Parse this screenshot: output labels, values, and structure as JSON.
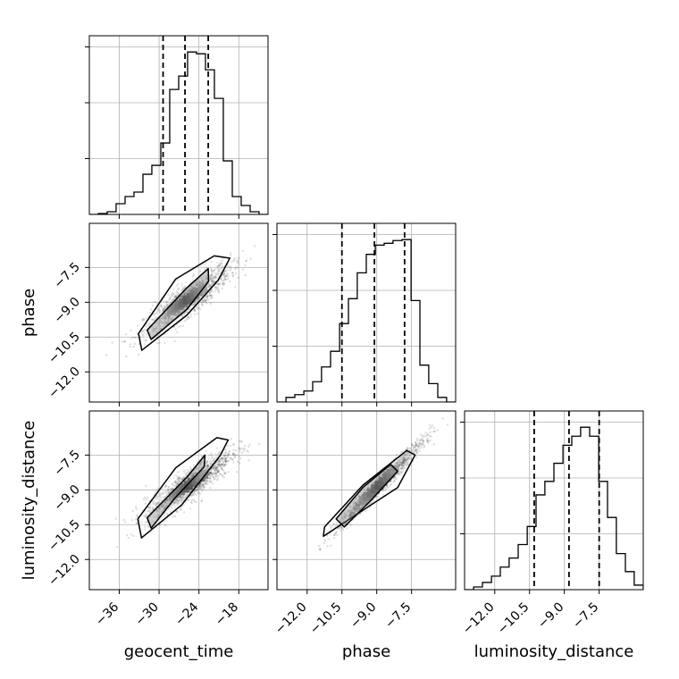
{
  "chart_data": {
    "type": "corner",
    "parameters": [
      "geocent_time",
      "phase",
      "luminosity_distance"
    ],
    "axis_labels": {
      "x": [
        "geocent_time",
        "phase",
        "luminosity_distance"
      ],
      "y": [
        "phase",
        "luminosity_distance"
      ]
    },
    "ranges": {
      "geocent_time": [
        -40.5,
        -13.6
      ],
      "phase": [
        -13.3,
        -5.6
      ],
      "luminosity_distance": [
        -13.3,
        -5.6
      ]
    },
    "ticks": {
      "geocent_time": [
        -36,
        -30,
        -24,
        -18
      ],
      "phase": [
        -12.0,
        -10.5,
        -9.0,
        -7.5
      ],
      "luminosity_distance": [
        -12.0,
        -10.5,
        -9.0,
        -7.5
      ]
    },
    "tick_labels": {
      "geocent_time": [
        "−36",
        "−30",
        "−24",
        "−18"
      ],
      "phase": [
        "−12.0",
        "−10.5",
        "−9.0",
        "−7.5"
      ],
      "luminosity_distance": [
        "−12.0",
        "−10.5",
        "−9.0",
        "−7.5"
      ]
    },
    "quantiles": {
      "geocent_time": [
        -29.4,
        -26.1,
        -22.6
      ],
      "phase": [
        -10.5,
        -9.1,
        -7.8
      ],
      "luminosity_distance": [
        -10.3,
        -8.8,
        -7.5
      ]
    },
    "histograms": {
      "geocent_time": {
        "edges": [
          -40.5,
          -39.16,
          -37.81,
          -36.47,
          -35.12,
          -33.78,
          -32.43,
          -31.09,
          -29.74,
          -28.4,
          -27.05,
          -25.71,
          -24.36,
          -23.02,
          -21.67,
          -20.33,
          -18.98,
          -17.64,
          -16.29,
          -14.95,
          -13.6
        ],
        "values": [
          0,
          1,
          3,
          12,
          20,
          25,
          45,
          55,
          80,
          140,
          155,
          182,
          180,
          162,
          130,
          60,
          20,
          10,
          3,
          0
        ]
      },
      "phase": {
        "edges": [
          -13.3,
          -12.91,
          -12.53,
          -12.14,
          -11.76,
          -11.38,
          -10.99,
          -10.6,
          -10.22,
          -9.84,
          -9.45,
          -9.06,
          -8.68,
          -8.3,
          -7.91,
          -7.52,
          -7.14,
          -6.76,
          -6.37,
          -5.99,
          -5.6
        ],
        "values": [
          0,
          5,
          8,
          12,
          22,
          38,
          55,
          85,
          112,
          140,
          160,
          170,
          172,
          175,
          176,
          110,
          40,
          20,
          5,
          0
        ]
      },
      "luminosity_distance": {
        "edges": [
          -13.3,
          -12.91,
          -12.53,
          -12.14,
          -11.76,
          -11.38,
          -10.99,
          -10.6,
          -10.22,
          -9.84,
          -9.45,
          -9.06,
          -8.68,
          -8.3,
          -7.91,
          -7.52,
          -7.14,
          -6.76,
          -6.37,
          -5.99,
          -5.6
        ],
        "values": [
          0,
          3,
          8,
          15,
          25,
          35,
          50,
          70,
          105,
          120,
          140,
          160,
          170,
          180,
          170,
          120,
          80,
          40,
          20,
          5
        ]
      }
    },
    "pairs": [
      {
        "x": "geocent_time",
        "y": "phase",
        "center": [
          -25.8,
          -8.9
        ],
        "slope": 0.2,
        "scatter": 0.35,
        "contours": [
          [
            [
              -32.6,
              -11.07
            ],
            [
              -25.8,
              -9.55
            ],
            [
              -21.1,
              -8.05
            ],
            [
              -19.35,
              -7.1
            ],
            [
              -21.7,
              -7.0
            ],
            [
              -27.5,
              -8.0
            ],
            [
              -33.1,
              -10.35
            ]
          ],
          [
            [
              -31.2,
              -10.6
            ],
            [
              -25.8,
              -9.3
            ],
            [
              -22.55,
              -8.1
            ],
            [
              -22.6,
              -7.55
            ],
            [
              -25.9,
              -8.4
            ],
            [
              -31.8,
              -10.2
            ]
          ]
        ]
      },
      {
        "x": "geocent_time",
        "y": "luminosity_distance",
        "center": [
          -25.6,
          -8.8
        ],
        "slope": 0.2,
        "scatter": 0.35,
        "contours": [
          [
            [
              -32.65,
              -11.07
            ],
            [
              -26.6,
              -9.65
            ],
            [
              -20.8,
              -7.52
            ],
            [
              -19.6,
              -6.85
            ],
            [
              -21.3,
              -6.75
            ],
            [
              -27.5,
              -8.05
            ],
            [
              -33.2,
              -10.25
            ]
          ],
          [
            [
              -31.2,
              -10.65
            ],
            [
              -27.6,
              -9.35
            ],
            [
              -23.2,
              -8.0
            ],
            [
              -23.1,
              -7.5
            ],
            [
              -25.8,
              -8.45
            ],
            [
              -31.8,
              -10.2
            ]
          ]
        ]
      },
      {
        "x": "phase",
        "y": "luminosity_distance",
        "center": [
          -8.9,
          -8.8
        ],
        "slope": 1.0,
        "scatter": 0.2,
        "contours": [
          [
            [
              -11.3,
              -11.0
            ],
            [
              -9.4,
              -9.75
            ],
            [
              -8.1,
              -8.9
            ],
            [
              -7.35,
              -7.5
            ],
            [
              -7.7,
              -7.3
            ],
            [
              -9.6,
              -8.8
            ],
            [
              -11.25,
              -10.6
            ]
          ],
          [
            [
              -10.4,
              -10.6
            ],
            [
              -9.25,
              -9.45
            ],
            [
              -8.1,
              -8.2
            ],
            [
              -8.4,
              -7.9
            ],
            [
              -9.6,
              -8.9
            ],
            [
              -10.75,
              -10.25
            ]
          ]
        ]
      }
    ]
  }
}
